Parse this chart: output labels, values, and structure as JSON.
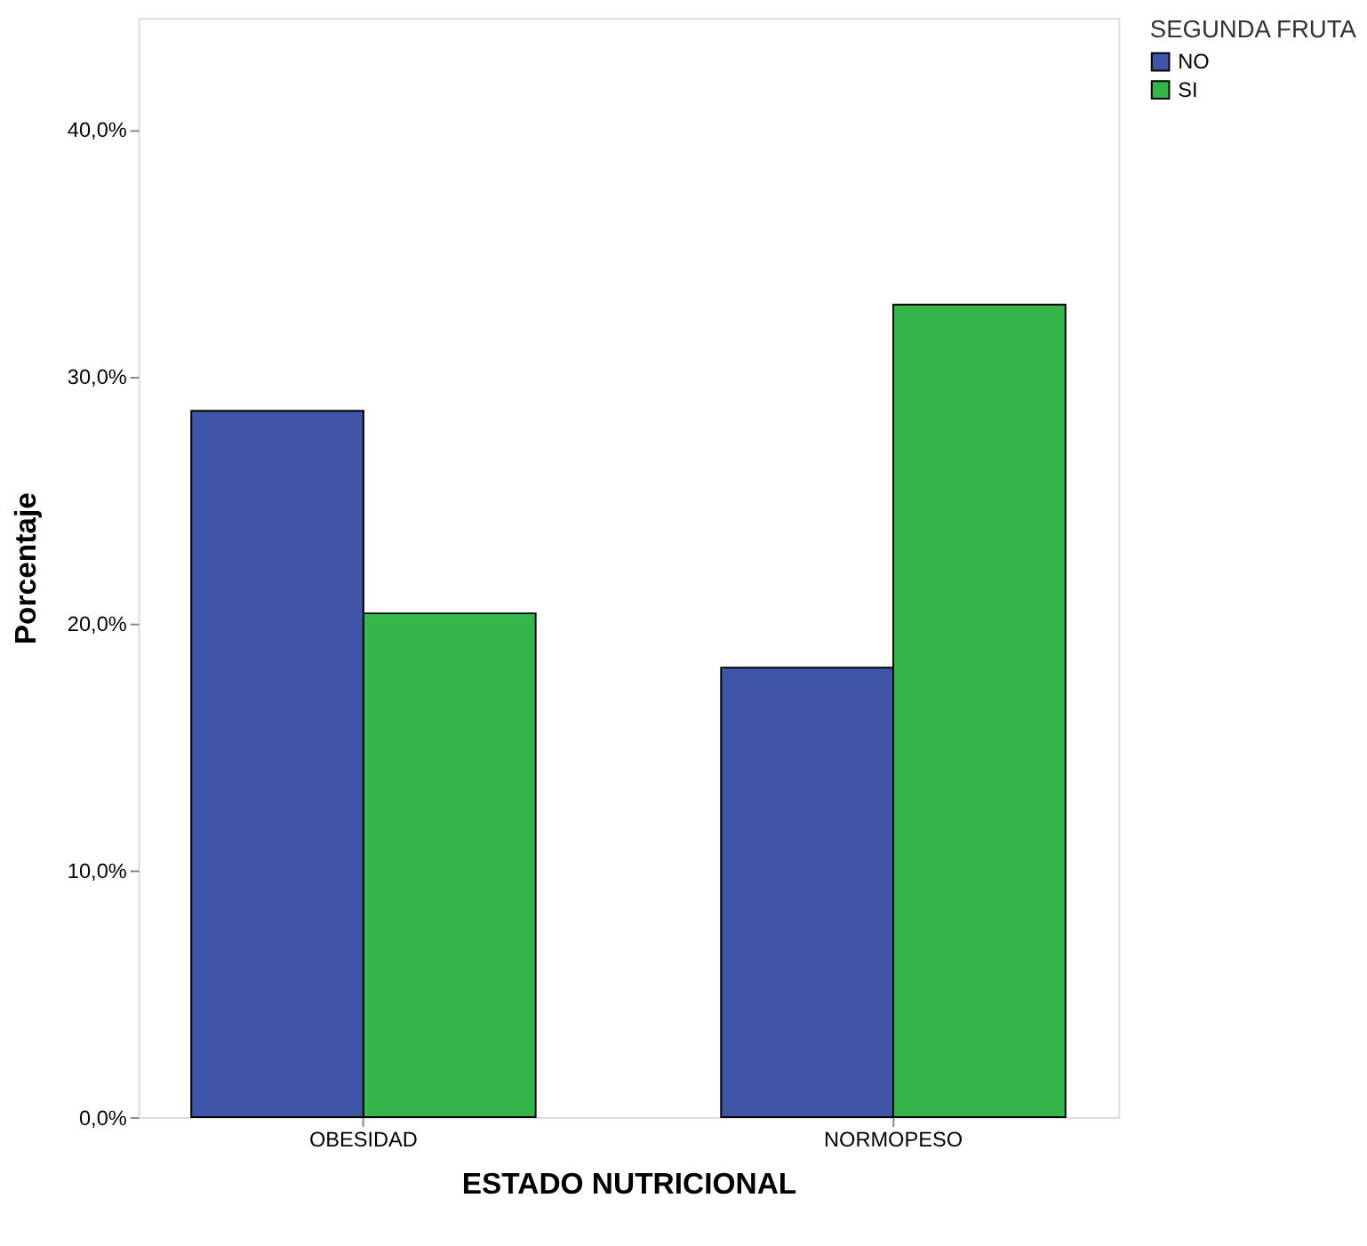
{
  "chart_data": {
    "type": "bar",
    "xlabel": "ESTADO NUTRICIONAL",
    "ylabel": "Porcentaje",
    "legend_title": "SEGUNDA FRUTA",
    "categories": [
      "OBESIDAD",
      "NORMOPESO"
    ],
    "series": [
      {
        "name": "NO",
        "color": "#3f56a8",
        "values": [
          28.6,
          18.2
        ]
      },
      {
        "name": "SI",
        "color": "#35b648",
        "values": [
          20.4,
          32.9
        ]
      }
    ],
    "ylim": [
      0,
      44.5
    ],
    "yticks": [
      {
        "value": 0,
        "label": "0,0%"
      },
      {
        "value": 10,
        "label": "10,0%"
      },
      {
        "value": 20,
        "label": "20,0%"
      },
      {
        "value": 30,
        "label": "30,0%"
      },
      {
        "value": 40,
        "label": "40,0%"
      }
    ],
    "grid": false,
    "legend": "top right"
  }
}
